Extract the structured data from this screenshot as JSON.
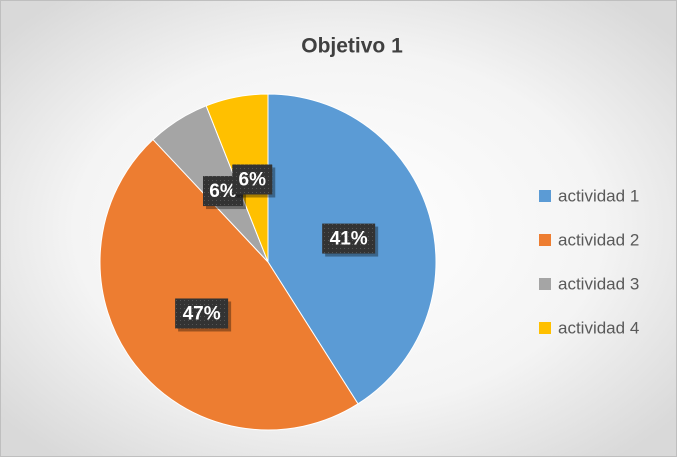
{
  "chart_data": {
    "type": "pie",
    "title": "Objetivo 1",
    "categories": [
      "actividad 1",
      "actividad 2",
      "actividad 3",
      "actividad 4"
    ],
    "values": [
      41,
      47,
      6,
      6
    ],
    "value_labels": [
      "41%",
      "47%",
      "6%",
      "6%"
    ],
    "colors": [
      "#5b9bd5",
      "#ed7d31",
      "#a5a5a5",
      "#ffc000"
    ],
    "legend": "right"
  }
}
